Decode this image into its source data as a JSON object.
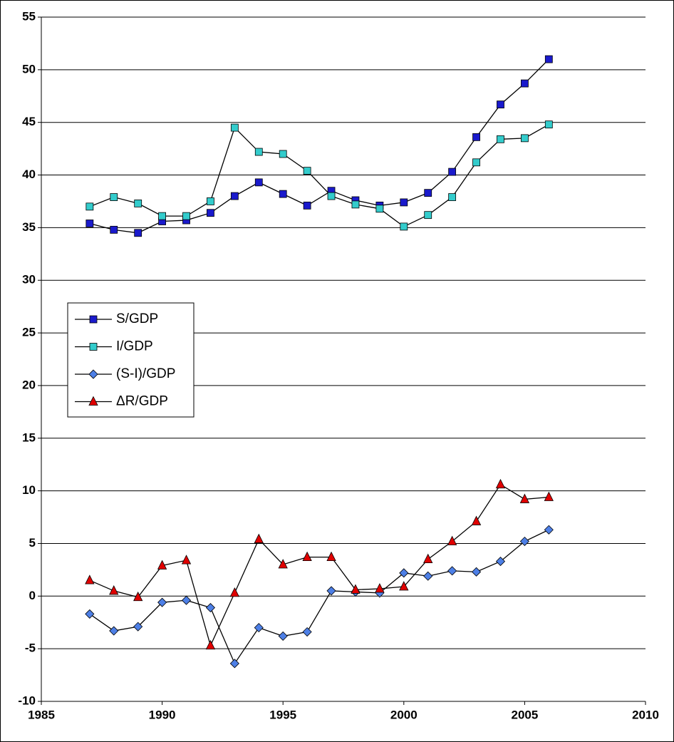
{
  "chart_data": {
    "type": "line",
    "x": [
      1987,
      1988,
      1989,
      1990,
      1991,
      1992,
      1993,
      1994,
      1995,
      1996,
      1997,
      1998,
      1999,
      2000,
      2001,
      2002,
      2003,
      2004,
      2005,
      2006
    ],
    "series": [
      {
        "name": "S/GDP",
        "color": "#1a1acc",
        "marker": "square",
        "values": [
          35.4,
          34.8,
          34.5,
          35.6,
          35.7,
          36.4,
          38.0,
          39.3,
          38.2,
          37.1,
          38.5,
          37.6,
          37.1,
          37.4,
          38.3,
          40.3,
          43.6,
          46.7,
          48.7,
          51.0
        ]
      },
      {
        "name": "I/GDP",
        "color": "#33cccc",
        "marker": "square",
        "values": [
          37.0,
          37.9,
          37.3,
          36.1,
          36.1,
          37.5,
          44.5,
          42.2,
          42.0,
          40.4,
          38.0,
          37.2,
          36.8,
          35.1,
          36.2,
          37.9,
          41.2,
          43.4,
          43.5,
          44.8
        ]
      },
      {
        "name": "(S-I)/GDP",
        "color": "#4d7fe6",
        "marker": "diamond",
        "values": [
          -1.7,
          -3.3,
          -2.9,
          -0.6,
          -0.4,
          -1.1,
          -6.4,
          -3.0,
          -3.8,
          -3.4,
          0.5,
          0.4,
          0.3,
          2.2,
          1.9,
          2.4,
          2.3,
          3.3,
          5.2,
          6.3
        ]
      },
      {
        "name": "ΔR/GDP",
        "color": "#e00000",
        "marker": "triangle",
        "values": [
          1.5,
          0.5,
          -0.1,
          2.9,
          3.4,
          -4.7,
          0.3,
          5.4,
          3.0,
          3.7,
          3.7,
          0.6,
          0.7,
          0.9,
          3.5,
          5.2,
          7.1,
          10.6,
          9.2,
          9.4
        ]
      }
    ],
    "line_color": "#000000",
    "xlim": [
      1985,
      2010
    ],
    "xticks": [
      1985,
      1990,
      1995,
      2000,
      2005,
      2010
    ],
    "ylim": [
      -10,
      55
    ],
    "yticks": [
      -10,
      -5,
      0,
      5,
      10,
      15,
      20,
      25,
      30,
      35,
      40,
      45,
      50,
      55
    ],
    "grid": true,
    "legend": "left"
  }
}
